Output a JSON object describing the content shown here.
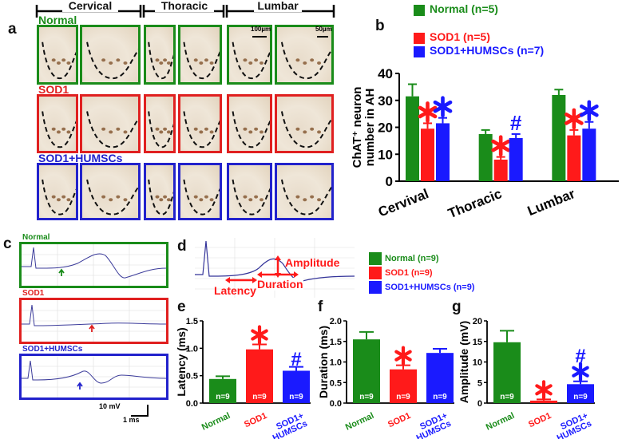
{
  "panel_a": {
    "letter": "a",
    "regions": [
      "Cervical",
      "Thoracic",
      "Lumbar"
    ],
    "rows": [
      {
        "label": "Normal",
        "color": "#1a8c1a"
      },
      {
        "label": "SOD1",
        "color": "#e02020"
      },
      {
        "label": "SOD1+HUMSCs",
        "color": "#2222cc"
      }
    ],
    "scale_bars": [
      "100µm",
      "50µm"
    ]
  },
  "panel_b": {
    "letter": "b",
    "legend": [
      {
        "label": "Normal (n=5)",
        "color": "#1a8c1a"
      },
      {
        "label": "SOD1 (n=5)",
        "color": "#ff1a1a"
      },
      {
        "label": "SOD1+HUMSCs (n=7)",
        "color": "#1a1aff"
      }
    ]
  },
  "panel_c": {
    "letter": "c",
    "traces": [
      {
        "label": "Normal",
        "color": "#1a8c1a",
        "arrow_color": "#1a8c1a"
      },
      {
        "label": "SOD1",
        "color": "#e02020",
        "arrow_color": "#e02020"
      },
      {
        "label": "SOD1+HUMSCs",
        "color": "#2222cc",
        "arrow_color": "#2222cc"
      }
    ],
    "scale_v": "10 mV",
    "scale_t": "1 ms"
  },
  "panel_d": {
    "letter": "d",
    "labels": {
      "amplitude": "Amplitude",
      "latency": "Latency",
      "duration": "Duration"
    },
    "legend": [
      {
        "label": "Normal (n=9)",
        "color": "#1a8c1a"
      },
      {
        "label": "SOD1 (n=9)",
        "color": "#ff1a1a"
      },
      {
        "label": "SOD1+HUMSCs (n=9)",
        "color": "#1a1aff"
      }
    ]
  },
  "panel_e_letter": "e",
  "panel_f_letter": "f",
  "panel_g_letter": "g",
  "chart_data": [
    {
      "id": "b",
      "type": "bar",
      "ylabel": "ChAT⁺ neuron number in AH",
      "categories": [
        "Cervival",
        "Thoracic",
        "Lumbar"
      ],
      "ylim": [
        0,
        40
      ],
      "yticks": [
        0,
        10,
        20,
        30,
        40
      ],
      "series": [
        {
          "name": "Normal (n=5)",
          "color": "#1a8c1a",
          "values": [
            31.5,
            17.5,
            32
          ],
          "errors": [
            4.5,
            1.5,
            2
          ]
        },
        {
          "name": "SOD1 (n=5)",
          "color": "#ff1a1a",
          "values": [
            19.5,
            8,
            17
          ],
          "errors": [
            2,
            1,
            2
          ]
        },
        {
          "name": "SOD1+HUMSCs (n=7)",
          "color": "#1a1aff",
          "values": [
            21.5,
            16,
            19.5
          ],
          "errors": [
            2,
            1.5,
            2.5
          ]
        }
      ],
      "annotations": [
        [
          "",
          "*",
          "*"
        ],
        [
          "",
          "*",
          "#"
        ],
        [
          "",
          "*",
          "*"
        ]
      ]
    },
    {
      "id": "e",
      "type": "bar",
      "ylabel": "Latency (ms)",
      "categories": [
        "Normal",
        "SOD1",
        "SOD1+ HUMSCs"
      ],
      "colors": [
        "#1a8c1a",
        "#ff1a1a",
        "#1a1aff"
      ],
      "values": [
        0.44,
        0.98,
        0.59
      ],
      "errors": [
        0.05,
        0.09,
        0.07
      ],
      "ylim": [
        0,
        1.5
      ],
      "yticks": [
        "0.0",
        "0.5",
        "1.0",
        "1.5"
      ],
      "n_labels": [
        "n=9",
        "n=9",
        "n=9"
      ],
      "annotations": [
        "",
        "*",
        "#"
      ]
    },
    {
      "id": "f",
      "type": "bar",
      "ylabel": "Duration (ms)",
      "categories": [
        "Normal",
        "SOD1",
        "SOD1+ HUMSCs"
      ],
      "colors": [
        "#1a8c1a",
        "#ff1a1a",
        "#1a1aff"
      ],
      "values": [
        1.55,
        0.82,
        1.22
      ],
      "errors": [
        0.18,
        0.1,
        0.1
      ],
      "ylim": [
        0,
        2.0
      ],
      "yticks": [
        "0.0",
        "0.5",
        "1.0",
        "1.5",
        "2.0"
      ],
      "n_labels": [
        "n=9",
        "n=9",
        "n=9"
      ],
      "annotations": [
        "",
        "*",
        ""
      ]
    },
    {
      "id": "g",
      "type": "bar",
      "ylabel": "Amplitude (mV)",
      "categories": [
        "Normal",
        "SOD1",
        "SOD1+ HUMSCs"
      ],
      "colors": [
        "#1a8c1a",
        "#ff1a1a",
        "#1a1aff"
      ],
      "values": [
        14.8,
        0.6,
        4.6
      ],
      "errors": [
        2.8,
        0.3,
        0.7
      ],
      "ylim": [
        0,
        20
      ],
      "yticks": [
        "0",
        "5",
        "10",
        "15",
        "20"
      ],
      "n_labels": [
        "n=9",
        "",
        "n=9"
      ],
      "annotations": [
        "",
        "*",
        "#*"
      ]
    }
  ]
}
